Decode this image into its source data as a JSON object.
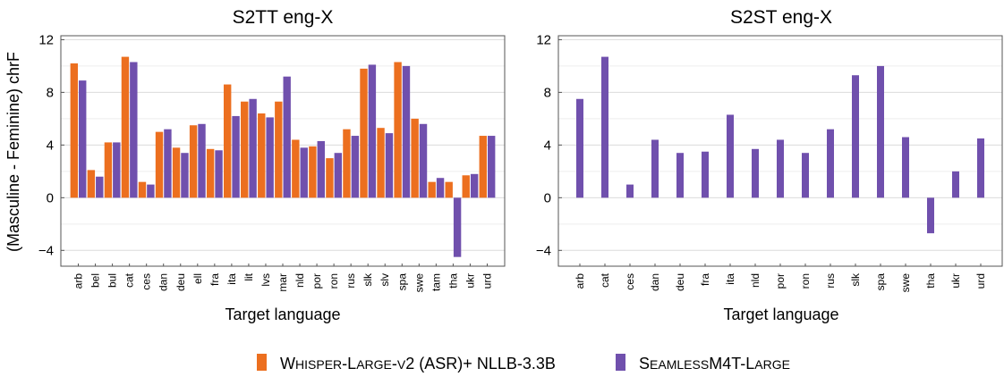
{
  "colors": {
    "whisper": "#ec6f1f",
    "seamless": "#7050ad",
    "grid": "#dcdcdc",
    "axis": "#555555"
  },
  "legend": {
    "items": [
      {
        "key": "whisper",
        "label": "Whisper-Large-v2 (ASR)+ NLLB-3.3B"
      },
      {
        "key": "seamless",
        "label": "SeamlessM4T-Large"
      }
    ]
  },
  "chart_data": [
    {
      "type": "bar",
      "title": "S2TT eng-X",
      "xlabel": "Target language",
      "ylabel": "(Masculine - Feminine) chrF",
      "ylim": [
        -5.2,
        12.3
      ],
      "yticks": [
        -4,
        0,
        4,
        8,
        12
      ],
      "ytick_labels": [
        "−4",
        "0",
        "4",
        "8",
        "12"
      ],
      "grid": true,
      "categories": [
        "arb",
        "bel",
        "bul",
        "cat",
        "ces",
        "dan",
        "deu",
        "ell",
        "fra",
        "ita",
        "lit",
        "lvs",
        "mar",
        "nld",
        "por",
        "ron",
        "rus",
        "slk",
        "slv",
        "spa",
        "swe",
        "tam",
        "tha",
        "ukr",
        "urd"
      ],
      "series": [
        {
          "name": "Whisper-Large-v2 (ASR)+ NLLB-3.3B",
          "key": "whisper",
          "values": [
            10.2,
            2.1,
            4.2,
            10.7,
            1.2,
            5.0,
            3.8,
            5.5,
            3.7,
            8.6,
            7.3,
            6.4,
            7.3,
            4.4,
            3.9,
            3.0,
            5.2,
            9.8,
            5.3,
            10.3,
            6.0,
            1.2,
            1.2,
            1.7,
            4.7
          ]
        },
        {
          "name": "SeamlessM4T-Large",
          "key": "seamless",
          "values": [
            8.9,
            1.6,
            4.2,
            10.3,
            1.0,
            5.2,
            3.4,
            5.6,
            3.6,
            6.2,
            7.5,
            6.1,
            9.2,
            3.8,
            4.3,
            3.4,
            4.7,
            10.1,
            4.9,
            10.0,
            5.6,
            1.5,
            -4.5,
            1.8,
            4.7
          ]
        }
      ]
    },
    {
      "type": "bar",
      "title": "S2ST eng-X",
      "xlabel": "Target language",
      "ylim": [
        -5.2,
        12.3
      ],
      "yticks": [
        -4,
        0,
        4,
        8,
        12
      ],
      "ytick_labels": [
        "−4",
        "0",
        "4",
        "8",
        "12"
      ],
      "grid": true,
      "categories": [
        "arb",
        "cat",
        "ces",
        "dan",
        "deu",
        "fra",
        "ita",
        "nld",
        "por",
        "ron",
        "rus",
        "slk",
        "spa",
        "swe",
        "tha",
        "ukr",
        "urd"
      ],
      "series": [
        {
          "name": "SeamlessM4T-Large",
          "key": "seamless",
          "values": [
            7.5,
            10.7,
            1.0,
            4.4,
            3.4,
            3.5,
            6.3,
            3.7,
            4.4,
            3.4,
            5.2,
            9.3,
            10.0,
            4.6,
            -2.7,
            2.0,
            4.5
          ]
        }
      ]
    }
  ]
}
